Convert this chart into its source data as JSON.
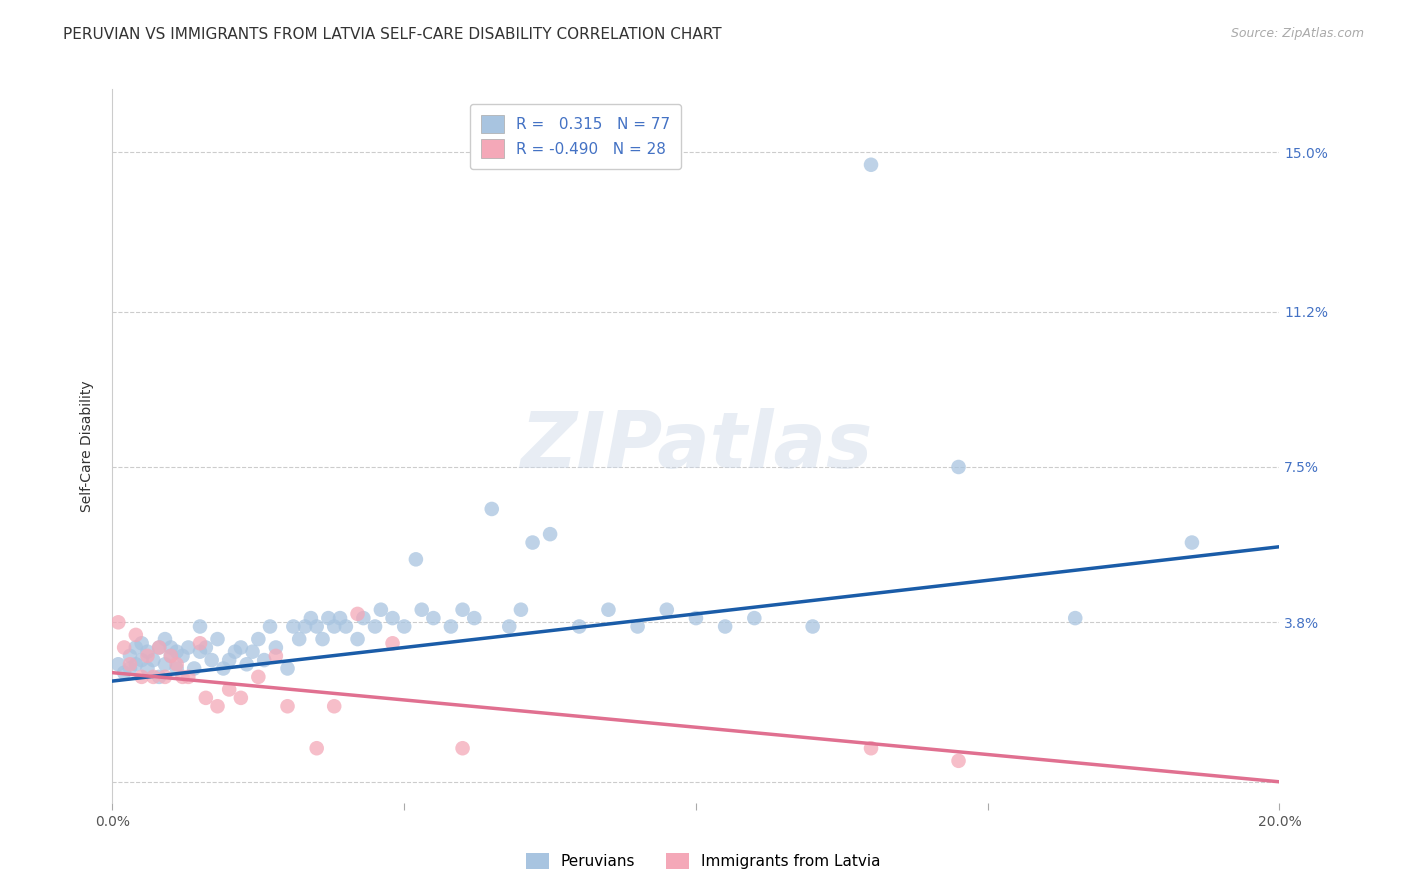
{
  "title": "PERUVIAN VS IMMIGRANTS FROM LATVIA SELF-CARE DISABILITY CORRELATION CHART",
  "source": "Source: ZipAtlas.com",
  "ylabel": "Self-Care Disability",
  "xlim": [
    0.0,
    0.2
  ],
  "ylim": [
    -0.005,
    0.165
  ],
  "yticks": [
    0.0,
    0.038,
    0.075,
    0.112,
    0.15
  ],
  "ytick_labels": [
    "",
    "3.8%",
    "7.5%",
    "11.2%",
    "15.0%"
  ],
  "xticks": [
    0.0,
    0.05,
    0.1,
    0.15,
    0.2
  ],
  "xtick_labels": [
    "0.0%",
    "",
    "",
    "",
    "20.0%"
  ],
  "r_peruvian": 0.315,
  "n_peruvian": 77,
  "r_latvia": -0.49,
  "n_latvia": 28,
  "peruvian_color": "#a8c4e0",
  "latvia_color": "#f4a8b8",
  "peruvian_line_color": "#1a5ca8",
  "latvia_line_color": "#e07090",
  "title_fontsize": 11,
  "axis_label_fontsize": 10,
  "tick_fontsize": 10,
  "legend_fontsize": 11,
  "watermark": "ZIPatlas",
  "peruvian_x": [
    0.001,
    0.002,
    0.003,
    0.003,
    0.004,
    0.004,
    0.005,
    0.005,
    0.006,
    0.006,
    0.007,
    0.008,
    0.008,
    0.009,
    0.009,
    0.01,
    0.01,
    0.011,
    0.011,
    0.012,
    0.013,
    0.014,
    0.015,
    0.015,
    0.016,
    0.017,
    0.018,
    0.019,
    0.02,
    0.021,
    0.022,
    0.023,
    0.024,
    0.025,
    0.026,
    0.027,
    0.028,
    0.03,
    0.031,
    0.032,
    0.033,
    0.034,
    0.035,
    0.036,
    0.037,
    0.038,
    0.039,
    0.04,
    0.042,
    0.043,
    0.045,
    0.046,
    0.048,
    0.05,
    0.052,
    0.053,
    0.055,
    0.058,
    0.06,
    0.062,
    0.065,
    0.068,
    0.07,
    0.072,
    0.075,
    0.08,
    0.085,
    0.09,
    0.095,
    0.1,
    0.105,
    0.11,
    0.12,
    0.13,
    0.145,
    0.165,
    0.185
  ],
  "peruvian_y": [
    0.028,
    0.026,
    0.03,
    0.027,
    0.032,
    0.028,
    0.033,
    0.029,
    0.027,
    0.031,
    0.029,
    0.032,
    0.025,
    0.034,
    0.028,
    0.03,
    0.032,
    0.031,
    0.027,
    0.03,
    0.032,
    0.027,
    0.031,
    0.037,
    0.032,
    0.029,
    0.034,
    0.027,
    0.029,
    0.031,
    0.032,
    0.028,
    0.031,
    0.034,
    0.029,
    0.037,
    0.032,
    0.027,
    0.037,
    0.034,
    0.037,
    0.039,
    0.037,
    0.034,
    0.039,
    0.037,
    0.039,
    0.037,
    0.034,
    0.039,
    0.037,
    0.041,
    0.039,
    0.037,
    0.053,
    0.041,
    0.039,
    0.037,
    0.041,
    0.039,
    0.065,
    0.037,
    0.041,
    0.057,
    0.059,
    0.037,
    0.041,
    0.037,
    0.041,
    0.039,
    0.037,
    0.039,
    0.037,
    0.147,
    0.075,
    0.039,
    0.057
  ],
  "latvia_x": [
    0.001,
    0.002,
    0.003,
    0.004,
    0.005,
    0.006,
    0.007,
    0.008,
    0.009,
    0.01,
    0.011,
    0.012,
    0.013,
    0.015,
    0.016,
    0.018,
    0.02,
    0.022,
    0.025,
    0.028,
    0.03,
    0.035,
    0.038,
    0.042,
    0.048,
    0.06,
    0.13,
    0.145
  ],
  "latvia_y": [
    0.038,
    0.032,
    0.028,
    0.035,
    0.025,
    0.03,
    0.025,
    0.032,
    0.025,
    0.03,
    0.028,
    0.025,
    0.025,
    0.033,
    0.02,
    0.018,
    0.022,
    0.02,
    0.025,
    0.03,
    0.018,
    0.008,
    0.018,
    0.04,
    0.033,
    0.008,
    0.008,
    0.005
  ],
  "blue_line_x": [
    0.0,
    0.2
  ],
  "blue_line_y": [
    0.024,
    0.056
  ],
  "pink_line_x": [
    0.0,
    0.2
  ],
  "pink_line_y": [
    0.026,
    0.0
  ]
}
